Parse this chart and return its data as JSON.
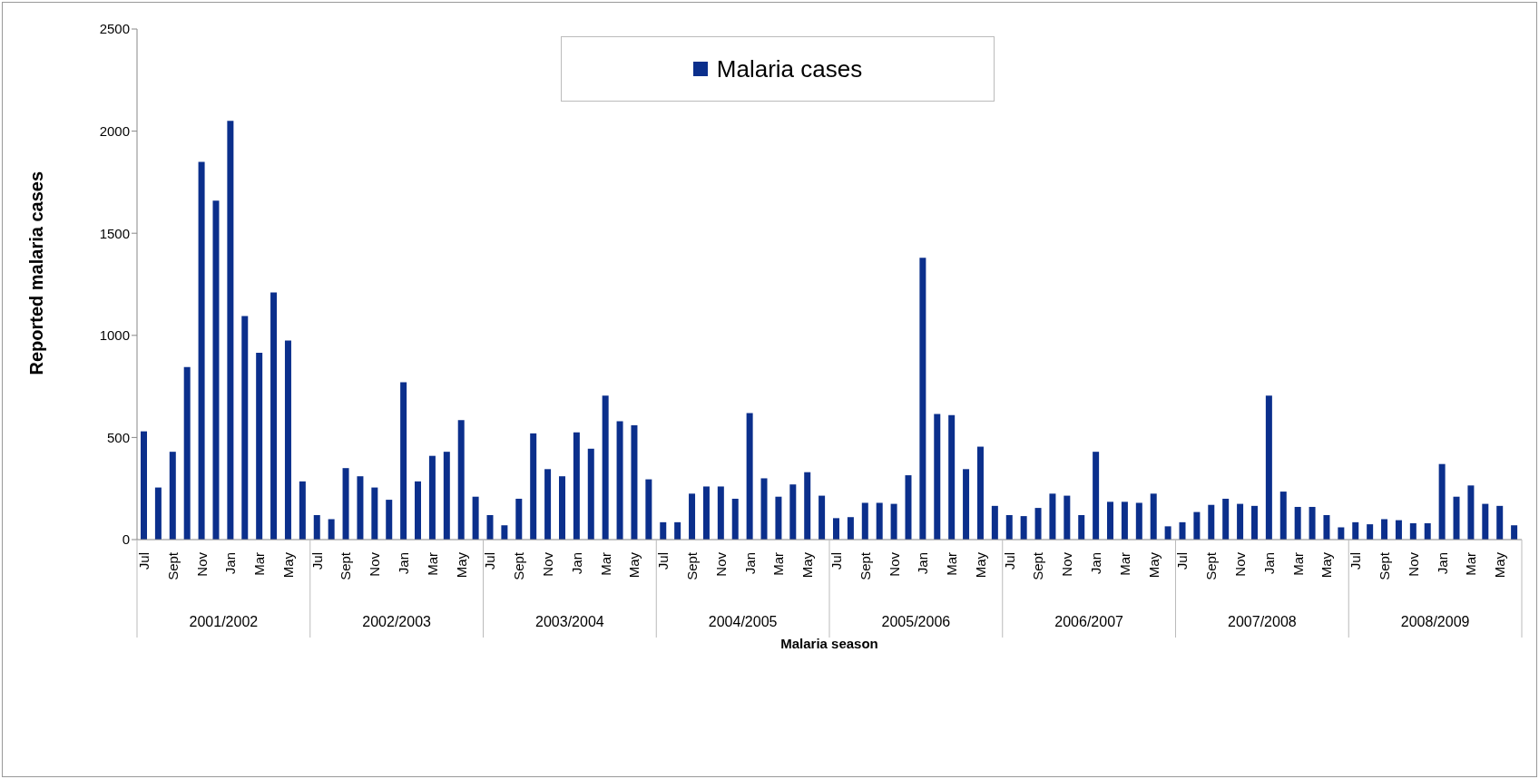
{
  "chart_data": {
    "type": "bar",
    "xlabel": "Malaria season",
    "ylabel": "Reported malaria cases",
    "categories": [
      "Jul",
      null,
      "Sept",
      null,
      "Nov",
      null,
      "Jan",
      null,
      "Mar",
      null,
      "May",
      null,
      "Jul",
      null,
      "Sept",
      null,
      "Nov",
      null,
      "Jan",
      null,
      "Mar",
      null,
      "May",
      null,
      "Jul",
      null,
      "Sept",
      null,
      "Nov",
      null,
      "Jan",
      null,
      "Mar",
      null,
      "May",
      null,
      "Jul",
      null,
      "Sept",
      null,
      "Nov",
      null,
      "Jan",
      null,
      "Mar",
      null,
      "May",
      null,
      "Jul",
      null,
      "Sept",
      null,
      "Nov",
      null,
      "Jan",
      null,
      "Mar",
      null,
      "May",
      null,
      "Jul",
      null,
      "Sept",
      null,
      "Nov",
      null,
      "Jan",
      null,
      "Mar",
      null,
      "May",
      null,
      "Jul",
      null,
      "Sept",
      null,
      "Nov",
      null,
      "Jan",
      null,
      "Mar",
      null,
      "May",
      null,
      "Jul",
      null,
      "Sept",
      null,
      "Nov",
      null,
      "Jan",
      null,
      "Mar",
      null,
      "May",
      null
    ],
    "annotations": [
      "2001/2002",
      "2002/2003",
      "2003/2004",
      "2004/2005",
      "2005/2006",
      "2006/2007",
      "2007/2008",
      "2008/2009"
    ],
    "series": [
      {
        "name": "Malaria cases",
        "color": "#0b2f8c",
        "values": [
          530,
          255,
          430,
          845,
          1850,
          1660,
          2050,
          1095,
          915,
          1210,
          975,
          285,
          120,
          100,
          350,
          310,
          255,
          195,
          770,
          285,
          410,
          430,
          585,
          210,
          120,
          70,
          200,
          520,
          345,
          310,
          525,
          445,
          705,
          580,
          560,
          295,
          85,
          85,
          225,
          260,
          260,
          200,
          620,
          300,
          210,
          270,
          330,
          215,
          105,
          110,
          180,
          180,
          175,
          315,
          1380,
          615,
          610,
          345,
          455,
          165,
          120,
          115,
          155,
          225,
          215,
          120,
          430,
          185,
          185,
          180,
          225,
          65,
          85,
          135,
          170,
          200,
          175,
          165,
          705,
          235,
          160,
          160,
          120,
          60,
          85,
          75,
          100,
          95,
          80,
          80,
          370,
          210,
          265,
          175,
          165,
          70
        ]
      }
    ],
    "ylim": [
      0,
      2500
    ],
    "yticks": [
      0,
      500,
      1000,
      1500,
      2000,
      2500
    ],
    "legend": "top"
  }
}
